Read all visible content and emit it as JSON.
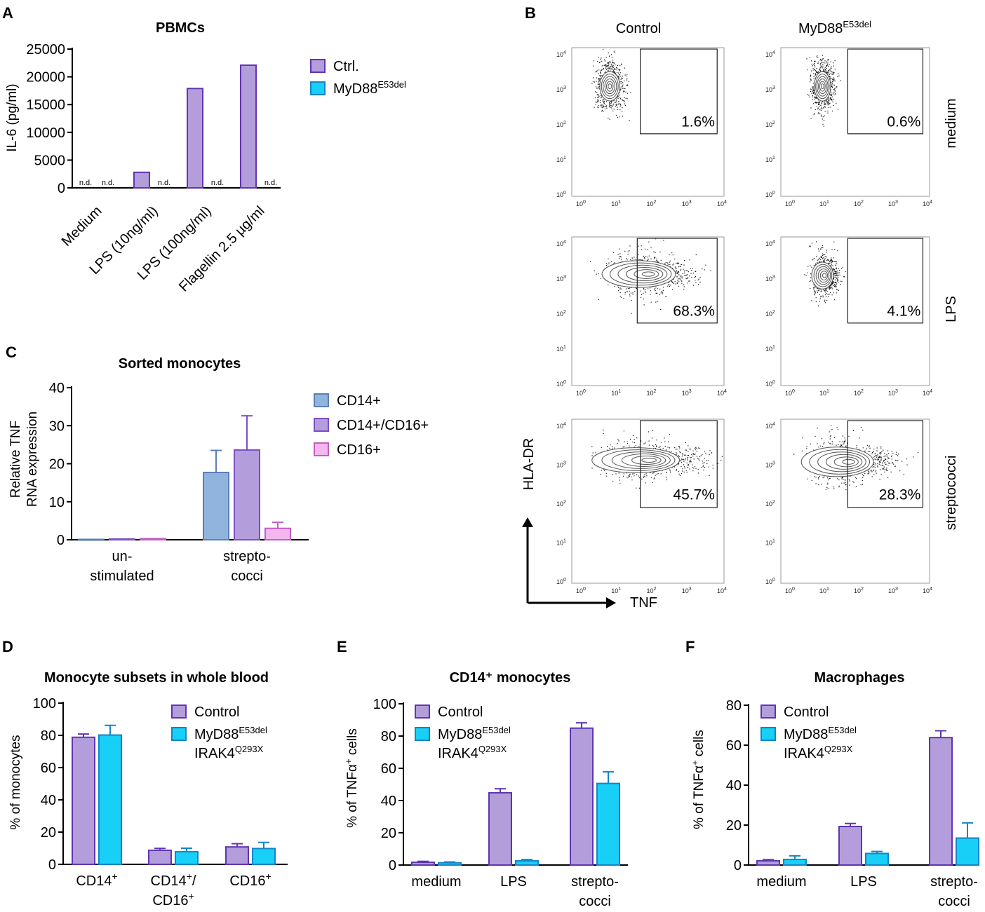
{
  "colors": {
    "ctrl_fill": "#b39ddb",
    "ctrl_stroke": "#5e35b1",
    "myd_fill": "#18d0f7",
    "myd_stroke": "#1385c8",
    "cd14_fill": "#90b4de",
    "cd14_stroke": "#5a7fb8",
    "cd1416_fill": "#b39ddb",
    "cd1416_stroke": "#7d4ec4",
    "cd16_fill": "#f3b6ee",
    "cd16_stroke": "#c25ec2"
  },
  "panel_labels": {
    "a": "A",
    "b": "B",
    "c": "C",
    "d": "D",
    "e": "E",
    "f": "F"
  },
  "chart_data": [
    {
      "id": "A",
      "type": "bar",
      "title": "PBMCs",
      "ylabel": "IL-6 (pg/ml)",
      "xlabel": "",
      "ylim": [
        0,
        25000
      ],
      "yticks": [
        "0",
        "5000",
        "10000",
        "15000",
        "20000",
        "25000"
      ],
      "categories": [
        "Medium",
        "LPS (10ng/ml)",
        "LPS (100ng/ml)",
        "Flagellin 2.5 µg/ml"
      ],
      "series": [
        {
          "name": "Ctrl.",
          "values": [
            0,
            2800,
            17900,
            22100
          ],
          "labels": [
            "n.d.",
            "",
            "",
            ""
          ]
        },
        {
          "name": "MyD88",
          "name_sup": "E53del",
          "values": [
            0,
            0,
            0,
            0
          ],
          "labels": [
            "n.d.",
            "n.d.",
            "n.d.",
            "n.d."
          ]
        }
      ],
      "legend_position": "right"
    },
    {
      "id": "C",
      "type": "bar",
      "title": "Sorted monocytes",
      "ylabel_lines": [
        "Relative TNF",
        "RNA expression"
      ],
      "ylim": [
        0,
        40
      ],
      "yticks": [
        "0",
        "10",
        "20",
        "30",
        "40"
      ],
      "categories": [
        [
          "un-",
          "stimulated"
        ],
        [
          "strepto-",
          "cocci"
        ]
      ],
      "series": [
        {
          "name": "CD14+",
          "values": [
            0.1,
            17.7
          ],
          "errors": [
            0,
            5.8
          ]
        },
        {
          "name": "CD14+/CD16+",
          "values": [
            0.2,
            23.6
          ],
          "errors": [
            0,
            9.0
          ]
        },
        {
          "name": "CD16+",
          "values": [
            0.3,
            3.0
          ],
          "errors": [
            0,
            1.6
          ]
        }
      ],
      "legend_position": "right"
    },
    {
      "id": "D",
      "type": "bar",
      "title": "Monocyte subsets in whole blood",
      "ylabel": "% of monocytes",
      "ylim": [
        0,
        100
      ],
      "yticks": [
        "0",
        "20",
        "40",
        "60",
        "80",
        "100"
      ],
      "categories": [
        [
          "CD14⁺"
        ],
        [
          "CD14⁺/",
          "CD16⁺"
        ],
        [
          "CD16⁺"
        ]
      ],
      "series": [
        {
          "name": "Control",
          "values": [
            78.8,
            8.7,
            10.8
          ],
          "errors": [
            2.0,
            1.2,
            2.0
          ]
        },
        {
          "name": "MyD88",
          "name_sup": "E53del",
          "name2": "IRAK4",
          "name2_sup": "Q293X",
          "values": [
            80.2,
            7.8,
            9.8
          ],
          "errors": [
            6.0,
            2.2,
            3.8
          ]
        }
      ],
      "legend_position": "top-right"
    },
    {
      "id": "E",
      "type": "bar",
      "title": "CD14⁺ monocytes",
      "ylabel": "% of TNFα⁺ cells",
      "ylim": [
        0,
        100
      ],
      "yticks": [
        "0",
        "20",
        "40",
        "60",
        "80",
        "100"
      ],
      "categories": [
        [
          "medium"
        ],
        [
          "LPS"
        ],
        [
          "strepto-",
          "cocci"
        ]
      ],
      "series": [
        {
          "name": "Control",
          "values": [
            1.7,
            44.8,
            84.9
          ],
          "errors": [
            0.6,
            2.5,
            3.3
          ]
        },
        {
          "name": "MyD88",
          "name_sup": "E53del",
          "name2": "IRAK4",
          "name2_sup": "Q293X",
          "values": [
            1.4,
            2.6,
            50.6
          ],
          "errors": [
            0.5,
            0.8,
            7.2
          ]
        }
      ],
      "legend_position": "top-left"
    },
    {
      "id": "F",
      "type": "bar",
      "title": "Macrophages",
      "ylabel": "% of TNFα⁺ cells",
      "ylim": [
        0,
        80
      ],
      "yticks": [
        "0",
        "20",
        "40",
        "60",
        "80"
      ],
      "categories": [
        [
          "medium"
        ],
        [
          "LPS"
        ],
        [
          "strepto-",
          "cocci"
        ]
      ],
      "series": [
        {
          "name": "Control",
          "values": [
            2.1,
            19.3,
            63.8
          ],
          "errors": [
            0.6,
            1.5,
            3.4
          ]
        },
        {
          "name": "MyD88",
          "name_sup": "E53del",
          "name2": "IRAK4",
          "name2_sup": "Q293X",
          "values": [
            2.8,
            5.8,
            13.5
          ],
          "errors": [
            1.8,
            1.0,
            7.6
          ]
        }
      ],
      "legend_position": "top-left"
    }
  ],
  "flow": {
    "col_headers": [
      "Control",
      "MyD88"
    ],
    "col_header_sup": "E53del",
    "row_labels": [
      "medium",
      "LPS",
      "streptococci"
    ],
    "percentages": [
      [
        "1.6%",
        "0.6%"
      ],
      [
        "68.3%",
        "4.1%"
      ],
      [
        "45.7%",
        "28.3%"
      ]
    ],
    "y_axis_label": "HLA-DR",
    "x_axis_label": "TNF",
    "axis_decades": [
      "0",
      "1",
      "2",
      "3",
      "4"
    ],
    "axis_base": "10"
  }
}
